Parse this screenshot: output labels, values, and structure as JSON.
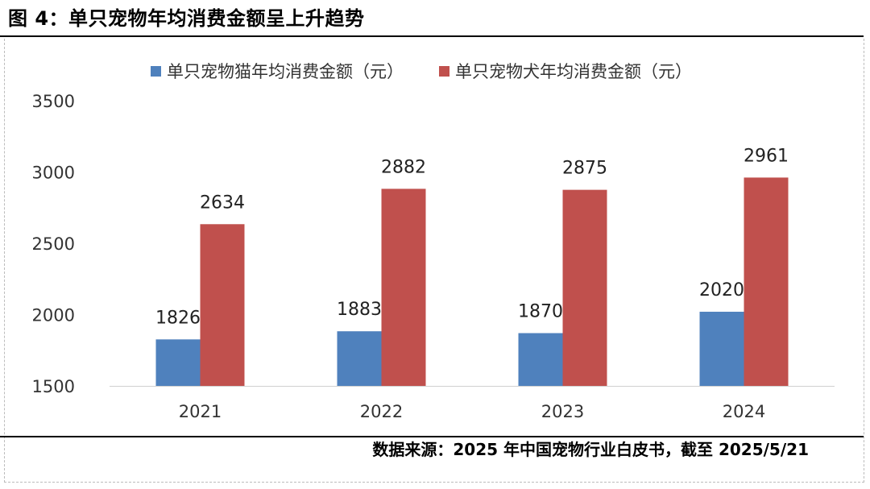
{
  "figure": {
    "title": "图 4：单只宠物年均消费金额呈上升趋势",
    "source": "数据来源：2025 年中国宠物行业白皮书，截至 2025/5/21"
  },
  "chart_data": {
    "type": "bar",
    "title": "",
    "xlabel": "",
    "ylabel": "",
    "categories": [
      "2021",
      "2022",
      "2023",
      "2024"
    ],
    "series": [
      {
        "name": "单只宠物猫年均消费金额（元）",
        "color": "#4f81bd",
        "values": [
          1826,
          1883,
          1870,
          2020
        ]
      },
      {
        "name": "单只宠物犬年均消费金额（元）",
        "color": "#c0504d",
        "values": [
          2634,
          2882,
          2875,
          2961
        ]
      }
    ],
    "ylim": [
      1500,
      3500
    ],
    "yticks": [
      "1500",
      "2000",
      "2500",
      "3000",
      "3500"
    ],
    "grid": false,
    "legend": "top-center",
    "data_labels": true
  }
}
